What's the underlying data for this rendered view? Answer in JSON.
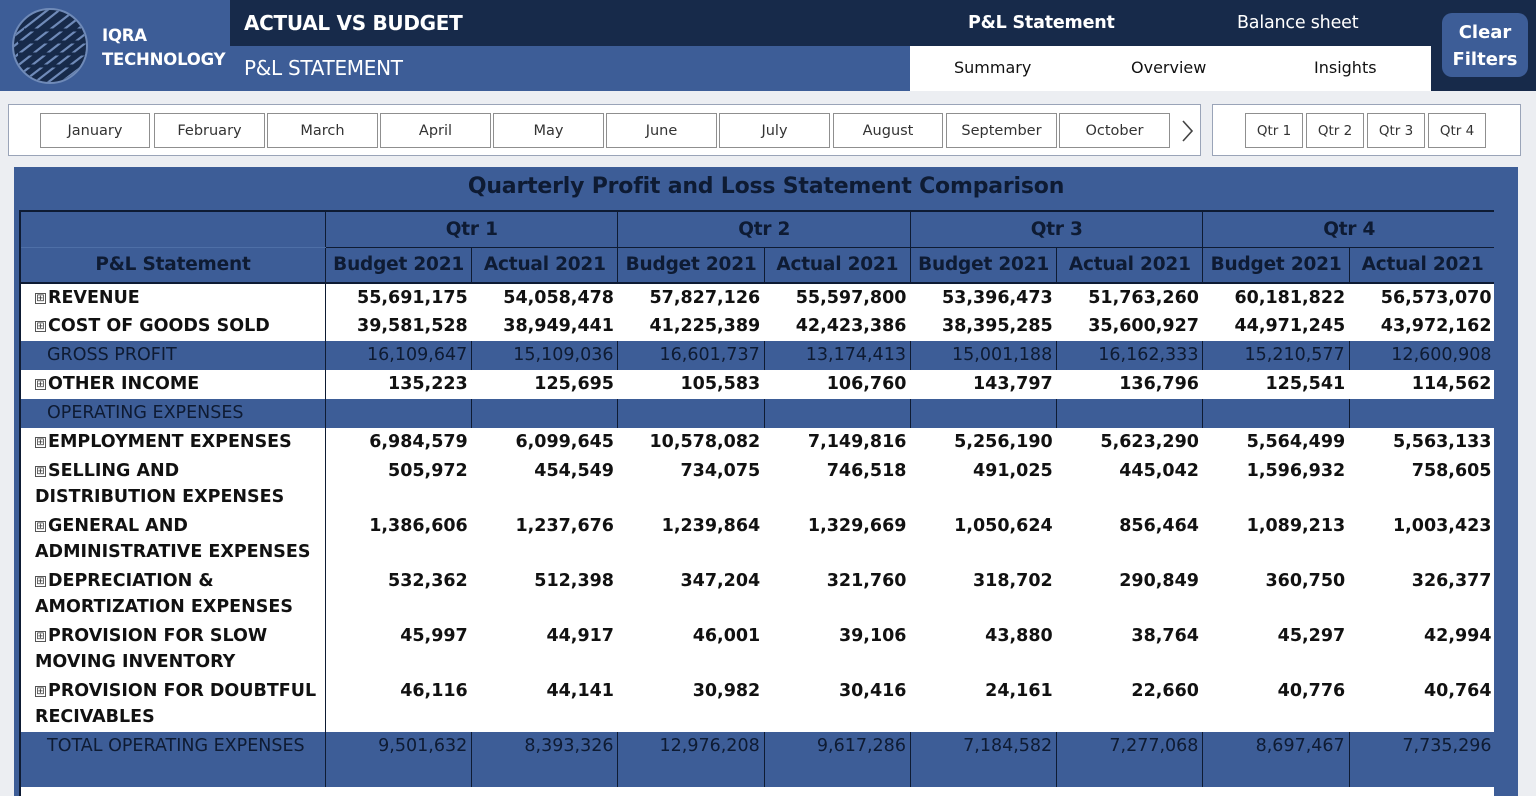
{
  "brand": {
    "line1": "IQRA",
    "line2": "TECHNOLOGY"
  },
  "header": {
    "title": "ACTUAL VS BUDGET",
    "subtitle": "P&L STATEMENT"
  },
  "nav": {
    "top_tabs": [
      "P&L Statement",
      "Balance sheet"
    ],
    "sub_tabs": [
      "Summary",
      "Overview",
      "Insights"
    ],
    "clear_line1": "Clear",
    "clear_line2": "Filters"
  },
  "months": [
    "January",
    "February",
    "March",
    "April",
    "May",
    "June",
    "July",
    "August",
    "September",
    "October"
  ],
  "quarters": [
    "Qtr 1",
    "Qtr 2",
    "Qtr 3",
    "Qtr 4"
  ],
  "table": {
    "title": "Quarterly Profit and Loss Statement Comparison",
    "row_header": "P&L Statement",
    "quarter_headers": [
      "Qtr 1",
      "Qtr 2",
      "Qtr 3",
      "Qtr 4"
    ],
    "sub_headers": [
      "Budget 2021",
      "Actual 2021",
      "Budget 2021",
      "Actual 2021",
      "Budget 2021",
      "Actual 2021",
      "Budget 2021",
      "Actual 2021"
    ],
    "rows": [
      {
        "label": "REVENUE",
        "expand": "⊞",
        "values": [
          "55,691,175",
          "54,058,478",
          "57,827,126",
          "55,597,800",
          "53,396,473",
          "51,763,260",
          "60,181,822",
          "56,573,070"
        ]
      },
      {
        "label": "COST OF GOODS SOLD",
        "expand": "⊞",
        "values": [
          "39,581,528",
          "38,949,441",
          "41,225,389",
          "42,423,386",
          "38,395,285",
          "35,600,927",
          "44,971,245",
          "43,972,162"
        ]
      },
      {
        "label": "GROSS PROFIT",
        "band": true,
        "values": [
          "16,109,647",
          "15,109,036",
          "16,601,737",
          "13,174,413",
          "15,001,188",
          "16,162,333",
          "15,210,577",
          "12,600,908"
        ]
      },
      {
        "label": "OTHER INCOME",
        "expand": "⊞",
        "values": [
          "135,223",
          "125,695",
          "105,583",
          "106,760",
          "143,797",
          "136,796",
          "125,541",
          "114,562"
        ]
      },
      {
        "label": "OPERATING EXPENSES",
        "band": true,
        "values": [
          "",
          "",
          "",
          "",
          "",
          "",
          "",
          ""
        ]
      },
      {
        "label": "EMPLOYMENT EXPENSES",
        "expand": "⊞",
        "values": [
          "6,984,579",
          "6,099,645",
          "10,578,082",
          "7,149,816",
          "5,256,190",
          "5,623,290",
          "5,564,499",
          "5,563,133"
        ]
      },
      {
        "label": "SELLING AND DISTRIBUTION EXPENSES",
        "expand": "⊞",
        "tall": true,
        "values": [
          "505,972",
          "454,549",
          "734,075",
          "746,518",
          "491,025",
          "445,042",
          "1,596,932",
          "758,605"
        ]
      },
      {
        "label": "GENERAL AND ADMINISTRATIVE EXPENSES",
        "expand": "⊞",
        "tall": true,
        "values": [
          "1,386,606",
          "1,237,676",
          "1,239,864",
          "1,329,669",
          "1,050,624",
          "856,464",
          "1,089,213",
          "1,003,423"
        ]
      },
      {
        "label": "DEPRECIATION & AMORTIZATION EXPENSES",
        "expand": "⊞",
        "tall": true,
        "values": [
          "532,362",
          "512,398",
          "347,204",
          "321,760",
          "318,702",
          "290,849",
          "360,750",
          "326,377"
        ]
      },
      {
        "label": "PROVISION FOR SLOW MOVING INVENTORY",
        "expand": "⊞",
        "tall": true,
        "values": [
          "45,997",
          "44,917",
          "46,001",
          "39,106",
          "43,880",
          "38,764",
          "45,297",
          "42,994"
        ]
      },
      {
        "label": "PROVISION FOR DOUBTFUL RECIVABLES",
        "expand": "⊞",
        "tall": true,
        "values": [
          "46,116",
          "44,141",
          "30,982",
          "30,416",
          "24,161",
          "22,660",
          "40,776",
          "40,764"
        ]
      },
      {
        "label": "TOTAL OPERATING EXPENSES",
        "band": true,
        "tall": true,
        "values": [
          "9,501,632",
          "8,393,326",
          "12,976,208",
          "9,617,286",
          "7,184,582",
          "7,277,068",
          "8,697,467",
          "7,735,296"
        ]
      }
    ]
  },
  "colors": {
    "navy": "#172a4a",
    "blue": "#3d5d97",
    "text_dark": "#0e1b33"
  },
  "icons": {
    "logo": "globe-stripes-logo-icon",
    "next": "chevron-right-icon",
    "expand": "expand-plus-icon"
  }
}
